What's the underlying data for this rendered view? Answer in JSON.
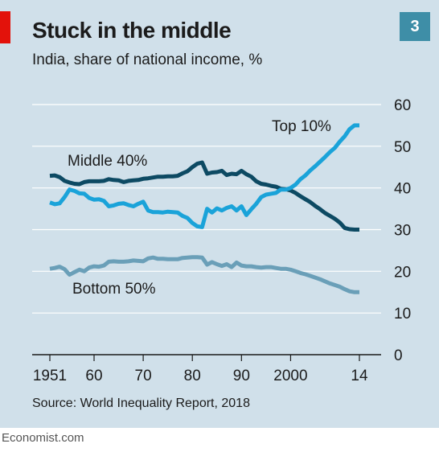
{
  "header": {
    "title": "Stuck in the middle",
    "subtitle": "India, share of national income, %",
    "badge": "3"
  },
  "footer": {
    "source": "Source: World Inequality Report, 2018",
    "credit": "Economist.com"
  },
  "colors": {
    "background": "#d0e0ea",
    "accent_red": "#e3120b",
    "top10": "#1aa3d9",
    "middle40": "#0d4a63",
    "bottom50": "#6a9fb8"
  },
  "chart_data": {
    "type": "line",
    "title": "Stuck in the middle",
    "subtitle": "India, share of national income, %",
    "x_ticks": [
      1951,
      1960,
      1970,
      1980,
      1990,
      2000,
      2014
    ],
    "x_tick_labels": [
      "1951",
      "60",
      "70",
      "80",
      "90",
      "2000",
      "14"
    ],
    "xlim": [
      1951,
      2014
    ],
    "y_ticks": [
      0,
      10,
      20,
      30,
      40,
      50,
      60
    ],
    "y_tick_labels": [
      "0",
      "10",
      "20",
      "30",
      "40",
      "50",
      "60"
    ],
    "ylim": [
      0,
      60
    ],
    "y_axis_position": "right",
    "grid": "horizontal",
    "series": [
      {
        "name": "Top 10%",
        "color": "#1aa3d9",
        "x": [
          1951,
          1952,
          1953,
          1954,
          1955,
          1956,
          1957,
          1958,
          1959,
          1960,
          1961,
          1962,
          1963,
          1964,
          1965,
          1966,
          1967,
          1968,
          1969,
          1970,
          1971,
          1972,
          1973,
          1974,
          1975,
          1976,
          1977,
          1978,
          1979,
          1980,
          1981,
          1982,
          1983,
          1984,
          1985,
          1986,
          1987,
          1988,
          1989,
          1990,
          1991,
          1992,
          1993,
          1994,
          1995,
          1996,
          1997,
          1998,
          1999,
          2000,
          2001,
          2002,
          2003,
          2004,
          2005,
          2006,
          2007,
          2008,
          2009,
          2010,
          2011,
          2012,
          2013,
          2014
        ],
        "y": [
          36.5,
          36.1,
          36.3,
          37.8,
          39.6,
          39.3,
          38.7,
          38.6,
          37.6,
          37.2,
          37.3,
          36.9,
          35.6,
          35.8,
          36.2,
          36.3,
          35.9,
          35.6,
          36.2,
          36.7,
          34.6,
          34.2,
          34.2,
          34.1,
          34.3,
          34.2,
          34.1,
          33.3,
          32.8,
          31.6,
          30.8,
          30.6,
          35.0,
          34.1,
          35.1,
          34.6,
          35.2,
          35.6,
          34.6,
          35.6,
          33.5,
          34.9,
          36.2,
          37.8,
          38.4,
          38.6,
          38.8,
          39.6,
          39.6,
          40.0,
          40.8,
          42.1,
          43.0,
          44.2,
          45.2,
          46.3,
          47.4,
          48.6,
          49.6,
          51.1,
          52.4,
          54.1,
          55.0,
          55.0
        ]
      },
      {
        "name": "Middle 40%",
        "color": "#0d4a63",
        "x": [
          1951,
          1952,
          1953,
          1954,
          1955,
          1956,
          1957,
          1958,
          1959,
          1960,
          1961,
          1962,
          1963,
          1964,
          1965,
          1966,
          1967,
          1968,
          1969,
          1970,
          1971,
          1972,
          1973,
          1974,
          1975,
          1976,
          1977,
          1978,
          1979,
          1980,
          1981,
          1982,
          1983,
          1984,
          1985,
          1986,
          1987,
          1988,
          1989,
          1990,
          1991,
          1992,
          1993,
          1994,
          1995,
          1996,
          1997,
          1998,
          1999,
          2000,
          2001,
          2002,
          2003,
          2004,
          2005,
          2006,
          2007,
          2008,
          2009,
          2010,
          2011,
          2012,
          2013,
          2014
        ],
        "y": [
          42.9,
          43.0,
          42.6,
          41.7,
          41.3,
          41.0,
          40.9,
          41.4,
          41.6,
          41.6,
          41.6,
          41.7,
          42.1,
          41.9,
          41.8,
          41.4,
          41.7,
          41.8,
          41.9,
          42.2,
          42.3,
          42.5,
          42.7,
          42.7,
          42.8,
          42.8,
          42.9,
          43.5,
          44.0,
          45.0,
          45.8,
          46.1,
          43.4,
          43.7,
          43.8,
          44.1,
          43.1,
          43.4,
          43.3,
          44.1,
          43.3,
          42.7,
          41.6,
          41.0,
          40.8,
          40.5,
          40.3,
          39.8,
          39.7,
          39.4,
          38.8,
          38.0,
          37.3,
          36.6,
          35.7,
          34.9,
          34.0,
          33.3,
          32.6,
          31.7,
          30.4,
          30.1,
          30.0,
          30.0
        ]
      },
      {
        "name": "Bottom 50%",
        "color": "#6a9fb8",
        "x": [
          1951,
          1952,
          1953,
          1954,
          1955,
          1956,
          1957,
          1958,
          1959,
          1960,
          1961,
          1962,
          1963,
          1964,
          1965,
          1966,
          1967,
          1968,
          1969,
          1970,
          1971,
          1972,
          1973,
          1974,
          1975,
          1976,
          1977,
          1978,
          1979,
          1980,
          1981,
          1982,
          1983,
          1984,
          1985,
          1986,
          1987,
          1988,
          1989,
          1990,
          1991,
          1992,
          1993,
          1994,
          1995,
          1996,
          1997,
          1998,
          1999,
          2000,
          2001,
          2002,
          2003,
          2004,
          2005,
          2006,
          2007,
          2008,
          2009,
          2010,
          2011,
          2012,
          2013,
          2014
        ],
        "y": [
          20.6,
          20.8,
          21.1,
          20.5,
          19.2,
          19.8,
          20.4,
          20.0,
          20.9,
          21.2,
          21.1,
          21.4,
          22.3,
          22.4,
          22.3,
          22.3,
          22.4,
          22.6,
          22.5,
          22.4,
          23.1,
          23.3,
          23.0,
          23.0,
          22.9,
          22.9,
          22.9,
          23.2,
          23.3,
          23.4,
          23.4,
          23.3,
          21.6,
          22.2,
          21.7,
          21.3,
          21.7,
          21.0,
          22.1,
          21.4,
          21.2,
          21.2,
          21.0,
          20.9,
          21.0,
          21.0,
          20.8,
          20.6,
          20.6,
          20.4,
          20.0,
          19.6,
          19.3,
          18.9,
          18.5,
          18.1,
          17.6,
          17.1,
          16.7,
          16.3,
          15.7,
          15.2,
          15.0,
          15.0
        ]
      }
    ]
  }
}
